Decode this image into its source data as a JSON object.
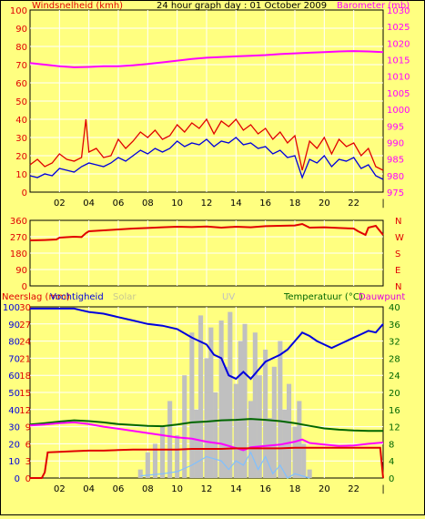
{
  "colors": {
    "background": "#ffff80",
    "plot_bg": "#ffff80",
    "grid": "#ffffff",
    "axis": "#000000",
    "red": "#e00000",
    "blue": "#0000dd",
    "magenta": "#ff00ff",
    "green": "#006600",
    "gray": "#c0c0c0",
    "light_blue": "#80c0ff",
    "solar_label": "#c8c890",
    "uv_label": "#c0c0c0"
  },
  "chart_data": [
    {
      "type": "line",
      "title": "24 hour graph day : 01 October 2009",
      "ylabel_left": "Windsnelheid (kmh)",
      "ylabel_right": "Barometer (mb)",
      "ylim_left": [
        0,
        100
      ],
      "ylim_right": [
        975,
        1030
      ],
      "yticks_left": [
        "100",
        "90",
        "80",
        "70",
        "60",
        "50",
        "40",
        "30",
        "20",
        "10",
        "0"
      ],
      "yticks_right": [
        "1030",
        "1025",
        "1020",
        "1015",
        "1010",
        "1005",
        "1000",
        "995",
        "990",
        "985",
        "980",
        "975"
      ],
      "x_ticks": [
        "02",
        "04",
        "06",
        "08",
        "10",
        "12",
        "14",
        "16",
        "18",
        "20",
        "22"
      ],
      "xlim": [
        0,
        24
      ],
      "grid": true,
      "series": [
        {
          "name": "Barometer (mb)",
          "axis": "right",
          "color": "#ff00ff",
          "x": [
            0,
            1,
            2,
            3,
            4,
            5,
            6,
            7,
            8,
            9,
            10,
            11,
            12,
            13,
            14,
            15,
            16,
            17,
            18,
            19,
            20,
            21,
            22,
            23,
            24
          ],
          "y": [
            1014,
            1013.5,
            1013,
            1012.7,
            1012.8,
            1013,
            1013,
            1013.3,
            1013.7,
            1014.2,
            1014.7,
            1015.2,
            1015.6,
            1015.8,
            1016,
            1016.2,
            1016.4,
            1016.7,
            1016.9,
            1017.1,
            1017.3,
            1017.5,
            1017.6,
            1017.5,
            1017.3
          ]
        },
        {
          "name": "Windsnelheid (kmh)",
          "axis": "left",
          "color": "#e00000",
          "x": [
            0,
            0.5,
            1,
            1.5,
            2,
            2.5,
            3,
            3.5,
            3.8,
            4,
            4.5,
            5,
            5.5,
            6,
            6.5,
            7,
            7.5,
            8,
            8.5,
            9,
            9.5,
            10,
            10.5,
            11,
            11.5,
            12,
            12.5,
            13,
            13.5,
            14,
            14.5,
            15,
            15.5,
            16,
            16.5,
            17,
            17.5,
            18,
            18.5,
            19,
            19.5,
            20,
            20.5,
            21,
            21.5,
            22,
            22.5,
            23,
            23.5,
            24
          ],
          "y": [
            15,
            18,
            14,
            16,
            21,
            18,
            17,
            19,
            40,
            22,
            24,
            19,
            20,
            29,
            24,
            28,
            33,
            30,
            34,
            29,
            31,
            37,
            33,
            38,
            35,
            40,
            32,
            39,
            36,
            40,
            34,
            37,
            32,
            35,
            29,
            33,
            27,
            31,
            12,
            28,
            24,
            30,
            21,
            29,
            25,
            27,
            20,
            24,
            14,
            12
          ]
        },
        {
          "name": "Windsnelheid gemiddeld",
          "axis": "left",
          "color": "#0000dd",
          "x": [
            0,
            0.5,
            1,
            1.5,
            2,
            2.5,
            3,
            3.5,
            4,
            4.5,
            5,
            5.5,
            6,
            6.5,
            7,
            7.5,
            8,
            8.5,
            9,
            9.5,
            10,
            10.5,
            11,
            11.5,
            12,
            12.5,
            13,
            13.5,
            14,
            14.5,
            15,
            15.5,
            16,
            16.5,
            17,
            17.5,
            18,
            18.5,
            19,
            19.5,
            20,
            20.5,
            21,
            21.5,
            22,
            22.5,
            23,
            23.5,
            24
          ],
          "y": [
            9,
            8,
            10,
            9,
            13,
            12,
            11,
            14,
            16,
            15,
            14,
            16,
            19,
            17,
            20,
            23,
            21,
            24,
            22,
            24,
            28,
            25,
            27,
            26,
            29,
            25,
            28,
            27,
            30,
            26,
            27,
            24,
            25,
            21,
            23,
            19,
            20,
            8,
            18,
            16,
            20,
            14,
            18,
            17,
            19,
            13,
            15,
            9,
            7
          ]
        }
      ]
    },
    {
      "type": "line",
      "ylim": [
        0,
        360
      ],
      "yticks": [
        "360",
        "270",
        "180",
        "90",
        "0"
      ],
      "right_labels": [
        "N",
        "W",
        "S",
        "E",
        "N"
      ],
      "x_ticks": [],
      "grid": true,
      "series": [
        {
          "name": "Windrichting",
          "color": "#e00000",
          "x": [
            0,
            1,
            1.8,
            2,
            3,
            3.5,
            3.8,
            4,
            5,
            6,
            7,
            8,
            9,
            10,
            11,
            12,
            13,
            14,
            15,
            16,
            17,
            18,
            18.5,
            19,
            20,
            21,
            22,
            22.3,
            22.8,
            23,
            23.5,
            24
          ],
          "y": [
            250,
            252,
            255,
            265,
            270,
            268,
            290,
            300,
            305,
            310,
            315,
            318,
            322,
            325,
            323,
            326,
            320,
            325,
            322,
            328,
            330,
            332,
            340,
            320,
            322,
            318,
            315,
            300,
            280,
            320,
            330,
            280
          ]
        }
      ]
    },
    {
      "type": "line",
      "ylabel_left": "Neerslag (mm)",
      "ylabel_left2": "Vochtigheid",
      "label_solar": "Solar",
      "label_uv": "UV",
      "ylabel_right": "Temperatuur (°C)",
      "ylabel_right2": "Dauwpunt",
      "yticks_left_a": [
        "100",
        "90",
        "80",
        "70",
        "60",
        "50",
        "40",
        "30",
        "20",
        "10",
        "0"
      ],
      "yticks_left_b": [
        "30",
        "27",
        "24",
        "21",
        "18",
        "15",
        "12",
        "9",
        "6",
        "3",
        "0"
      ],
      "yticks_right": [
        "40",
        "36",
        "32",
        "28",
        "24",
        "20",
        "16",
        "12",
        "8",
        "4",
        "0"
      ],
      "ylim_left": [
        0,
        100
      ],
      "ylim_right": [
        0,
        40
      ],
      "x_ticks": [
        "02",
        "04",
        "06",
        "08",
        "10",
        "12",
        "14",
        "16",
        "18",
        "20",
        "22"
      ],
      "xlim": [
        0,
        24
      ],
      "grid": true,
      "solar_bars": {
        "name": "Solar",
        "color": "#c0c0c0",
        "x": [
          7.5,
          8,
          8.5,
          9,
          9.5,
          10,
          10.5,
          11,
          11.3,
          11.6,
          12,
          12.3,
          12.6,
          13,
          13.3,
          13.6,
          14,
          14.3,
          14.6,
          15,
          15.3,
          15.6,
          16,
          16.3,
          16.6,
          17,
          17.3,
          17.6,
          18,
          18.3,
          18.6,
          19
        ],
        "y": [
          5,
          15,
          20,
          30,
          45,
          25,
          60,
          85,
          40,
          95,
          70,
          88,
          50,
          92,
          65,
          97,
          55,
          80,
          90,
          45,
          85,
          60,
          75,
          35,
          65,
          80,
          40,
          55,
          30,
          45,
          20,
          5
        ]
      },
      "series": [
        {
          "name": "Vochtigheid",
          "axis": "left",
          "color": "#0000dd",
          "x": [
            0,
            1,
            2,
            3,
            3.5,
            4,
            5,
            6,
            7,
            8,
            9,
            10,
            11,
            12,
            12.5,
            13,
            13.5,
            14,
            14.5,
            15,
            15.5,
            16,
            16.5,
            17,
            17.5,
            18,
            18.5,
            19,
            19.5,
            20,
            20.5,
            21,
            21.5,
            22,
            22.5,
            23,
            23.5,
            24
          ],
          "y": [
            99,
            99,
            99,
            99,
            98,
            97,
            96,
            94,
            92,
            90,
            89,
            87,
            82,
            78,
            72,
            70,
            60,
            58,
            62,
            58,
            63,
            68,
            70,
            72,
            75,
            80,
            85,
            83,
            80,
            78,
            76,
            78,
            80,
            82,
            84,
            86,
            85,
            90
          ]
        },
        {
          "name": "Temperatuur (°C)",
          "axis": "right",
          "color": "#006600",
          "x": [
            0,
            1,
            2,
            3,
            4,
            5,
            6,
            7,
            8,
            9,
            10,
            11,
            12,
            13,
            14,
            15,
            16,
            17,
            18,
            19,
            20,
            21,
            22,
            23,
            24
          ],
          "y": [
            12.5,
            12.8,
            13.2,
            13.5,
            13.3,
            13,
            12.6,
            12.4,
            12.2,
            12.1,
            12.5,
            13,
            13.2,
            13.5,
            13.6,
            13.8,
            13.6,
            13.3,
            12.8,
            12.2,
            11.6,
            11.3,
            11.1,
            11,
            11
          ]
        },
        {
          "name": "Dauwpunt",
          "axis": "right",
          "color": "#ff00ff",
          "x": [
            0,
            1,
            2,
            3,
            4,
            5,
            6,
            7,
            8,
            9,
            10,
            11,
            12,
            13,
            14,
            14.5,
            15,
            16,
            17,
            18,
            18.5,
            19,
            20,
            21,
            22,
            23,
            24
          ],
          "y": [
            12.3,
            12.5,
            12.8,
            13,
            12.6,
            12,
            11.5,
            11,
            10.5,
            10,
            9.5,
            9.2,
            8.5,
            8,
            7,
            6.5,
            7.2,
            7.5,
            7.8,
            8.5,
            9,
            8.2,
            7.8,
            7.5,
            7.6,
            8,
            8.3
          ]
        },
        {
          "name": "Neerslag (mm)",
          "axis": "left_b",
          "color": "#e00000",
          "x": [
            0,
            0.8,
            1,
            1.2,
            2,
            3,
            4,
            5,
            6,
            7,
            8,
            9,
            10,
            11,
            12,
            13,
            14,
            15,
            16,
            17,
            18,
            19,
            20,
            21,
            22,
            23,
            23.8,
            24
          ],
          "y": [
            0,
            0,
            1,
            4.5,
            4.6,
            4.7,
            4.8,
            4.8,
            4.9,
            5,
            5,
            5,
            5,
            5.1,
            5.1,
            5.1,
            5.2,
            5.2,
            5.2,
            5.2,
            5.3,
            5.3,
            5.3,
            5.3,
            5.3,
            5.3,
            5.3,
            0
          ]
        },
        {
          "name": "UV",
          "axis": "right",
          "color": "#80c0ff",
          "x": [
            7.5,
            9,
            10,
            11,
            12,
            13,
            13.5,
            14,
            14.5,
            15,
            15.5,
            16,
            16.5,
            17,
            17.5,
            18,
            19
          ],
          "y": [
            0.5,
            1,
            1.5,
            3,
            5,
            4,
            2,
            4,
            3,
            6,
            2,
            5,
            1,
            3,
            0,
            1,
            0
          ]
        }
      ]
    }
  ]
}
